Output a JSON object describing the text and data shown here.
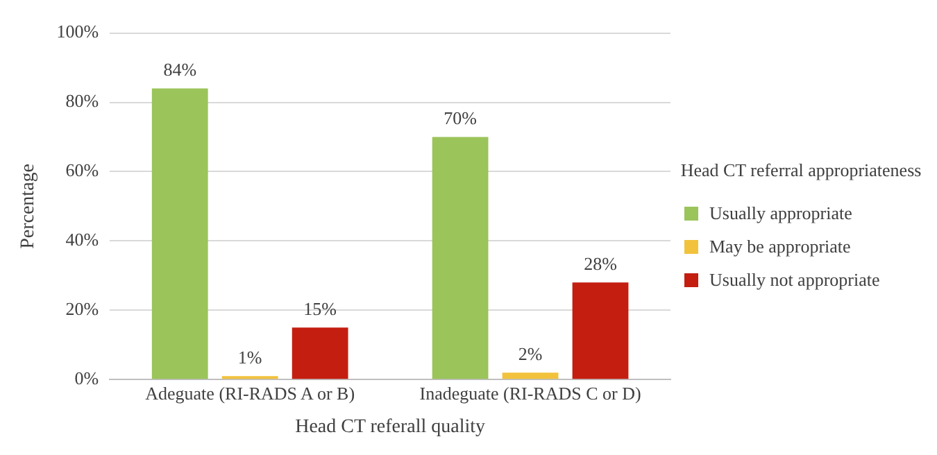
{
  "chart_data": {
    "type": "bar",
    "xlabel": "Head CT referall quality",
    "ylabel": "Percentage",
    "legend_title": "Head CT referral appropriateness",
    "categories": [
      "Adeguate (RI-RADS A or B)",
      "Inadeguate (RI-RADS C or D)"
    ],
    "series": [
      {
        "name": "Usually appropriate",
        "color": "#9bc45a",
        "values": [
          84,
          70
        ],
        "value_labels": [
          "84%",
          "70%"
        ]
      },
      {
        "name": "May be appropriate",
        "color": "#f2c23c",
        "values": [
          1,
          2
        ],
        "value_labels": [
          "1%",
          "2%"
        ]
      },
      {
        "name": "Usually not appropriate",
        "color": "#c41e10",
        "values": [
          15,
          28
        ],
        "value_labels": [
          "15%",
          "28%"
        ]
      }
    ],
    "ylim": [
      0,
      100
    ],
    "yticks": [
      {
        "value": 0,
        "label": "0%"
      },
      {
        "value": 20,
        "label": "20%"
      },
      {
        "value": 40,
        "label": "40%"
      },
      {
        "value": 60,
        "label": "60%"
      },
      {
        "value": 80,
        "label": "80%"
      },
      {
        "value": 100,
        "label": "100%"
      }
    ],
    "grid": "y",
    "legend": "right"
  }
}
